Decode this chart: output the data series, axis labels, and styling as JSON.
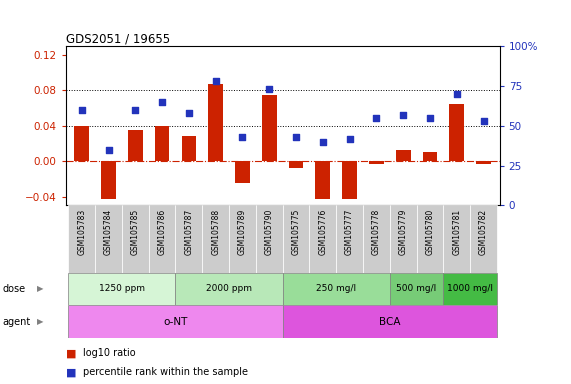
{
  "title": "GDS2051 / 19655",
  "samples": [
    "GSM105783",
    "GSM105784",
    "GSM105785",
    "GSM105786",
    "GSM105787",
    "GSM105788",
    "GSM105789",
    "GSM105790",
    "GSM105775",
    "GSM105776",
    "GSM105777",
    "GSM105778",
    "GSM105779",
    "GSM105780",
    "GSM105781",
    "GSM105782"
  ],
  "log10_ratio": [
    0.04,
    -0.043,
    0.035,
    0.04,
    0.028,
    0.087,
    -0.025,
    0.075,
    -0.008,
    -0.043,
    -0.043,
    -0.003,
    0.013,
    0.01,
    0.065,
    -0.003
  ],
  "percentile_rank": [
    60,
    35,
    60,
    65,
    58,
    78,
    43,
    73,
    43,
    40,
    42,
    55,
    57,
    55,
    70,
    53
  ],
  "ylim_left": [
    -0.05,
    0.13
  ],
  "ylim_right": [
    0,
    100
  ],
  "yticks_left": [
    -0.04,
    0.0,
    0.04,
    0.08,
    0.12
  ],
  "yticks_right": [
    0,
    25,
    50,
    75,
    100
  ],
  "hlines": [
    0.08,
    0.04
  ],
  "bar_color": "#cc2200",
  "dot_color": "#2233bb",
  "zero_line_color": "#cc2200",
  "dose_groups": [
    {
      "label": "1250 ppm",
      "start": 0,
      "end": 4,
      "color": "#d6f5d6"
    },
    {
      "label": "2000 ppm",
      "start": 4,
      "end": 8,
      "color": "#b8e8b8"
    },
    {
      "label": "250 mg/l",
      "start": 8,
      "end": 12,
      "color": "#99dd99"
    },
    {
      "label": "500 mg/l",
      "start": 12,
      "end": 14,
      "color": "#77cc77"
    },
    {
      "label": "1000 mg/l",
      "start": 14,
      "end": 16,
      "color": "#44bb44"
    }
  ],
  "agent_groups": [
    {
      "label": "o-NT",
      "start": 0,
      "end": 8,
      "color": "#ee88ee"
    },
    {
      "label": "BCA",
      "start": 8,
      "end": 16,
      "color": "#dd55dd"
    }
  ],
  "dose_label": "dose",
  "agent_label": "agent",
  "legend_bar_label": "log10 ratio",
  "legend_dot_label": "percentile rank within the sample",
  "bg_color": "#ffffff",
  "tick_label_color_left": "#cc2200",
  "tick_label_color_right": "#2233bb",
  "sample_bg_color": "#cccccc"
}
